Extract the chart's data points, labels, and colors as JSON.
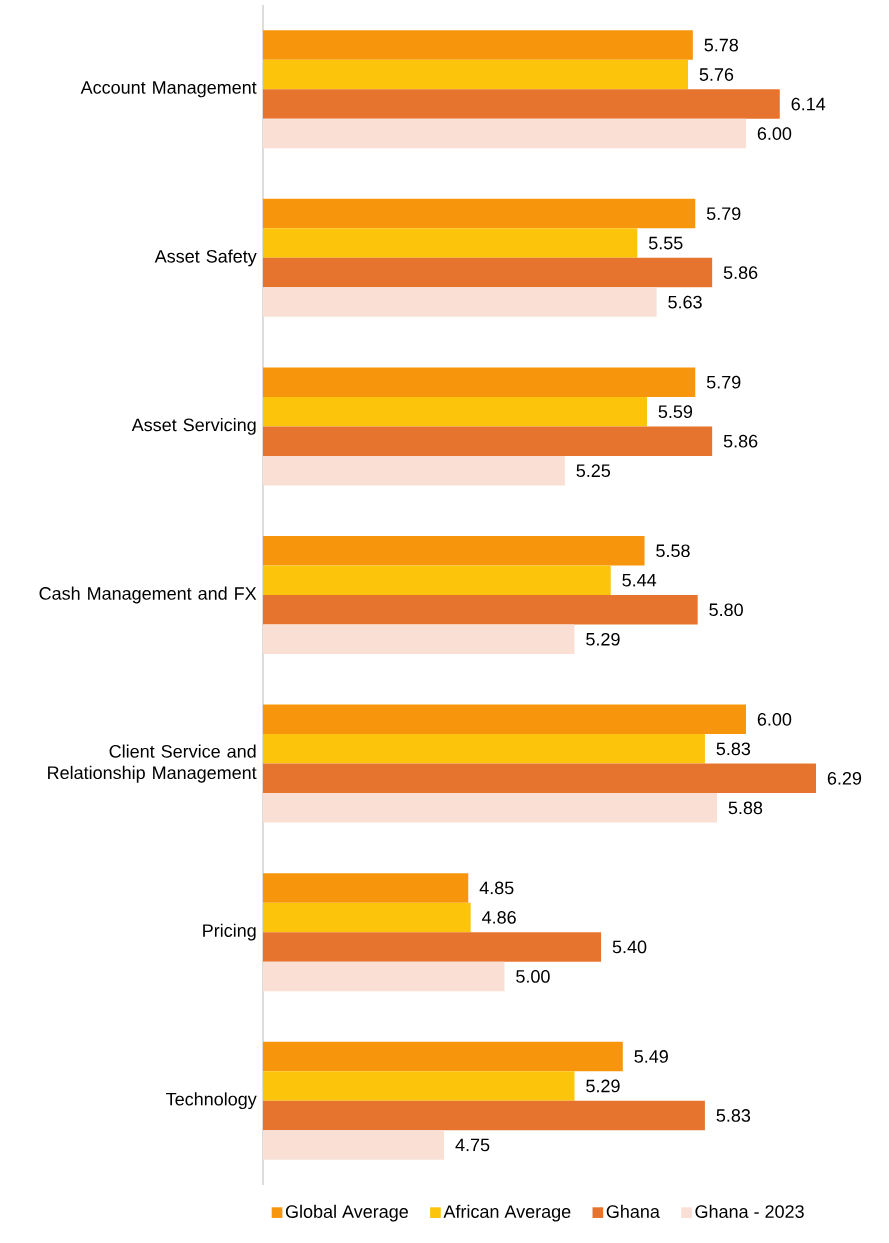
{
  "chart_data": {
    "type": "bar",
    "orientation": "horizontal",
    "legend": "bottom",
    "tick_labels": "y",
    "xlim": [
      4,
      6.29
    ],
    "categories": [
      "Account Management",
      "Asset Safety",
      "Asset Servicing",
      "Cash Management and FX",
      "Client Service and Relationship Management",
      "Pricing",
      "Technology"
    ],
    "series": [
      {
        "name": "Global Average",
        "color": "#f7950c",
        "values": [
          5.78,
          5.79,
          5.79,
          5.58,
          6.0,
          4.85,
          5.49
        ],
        "value_labels": [
          "5.78",
          "5.79",
          "5.79",
          "5.58",
          "6.00",
          "4.85",
          "5.49"
        ]
      },
      {
        "name": "African Average",
        "color": "#fcc40a",
        "values": [
          5.76,
          5.55,
          5.59,
          5.44,
          5.83,
          4.86,
          5.29
        ],
        "value_labels": [
          "5.76",
          "5.55",
          "5.59",
          "5.44",
          "5.83",
          "4.86",
          "5.29"
        ]
      },
      {
        "name": "Ghana",
        "color": "#e6742e",
        "values": [
          6.14,
          5.86,
          5.86,
          5.8,
          6.29,
          5.4,
          5.83
        ],
        "value_labels": [
          "6.14",
          "5.86",
          "5.86",
          "5.80",
          "6.29",
          "5.40",
          "5.83"
        ]
      },
      {
        "name": "Ghana - 2023",
        "color": "#f9dfd4",
        "values": [
          6.0,
          5.63,
          5.25,
          5.29,
          5.88,
          5.0,
          4.75
        ],
        "value_labels": [
          "6.00",
          "5.63",
          "5.25",
          "5.29",
          "5.88",
          "5.00",
          "4.75"
        ]
      }
    ]
  }
}
